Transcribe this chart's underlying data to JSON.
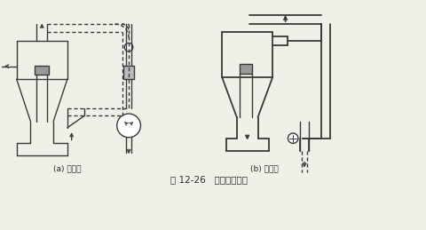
{
  "title": "图 12-26   气流输送系统",
  "label_a": "(a) 吸入式",
  "label_b": "(b) 压入式",
  "bg_color": "#f0efe8",
  "line_color": "#3a3a3a",
  "figsize": [
    4.81,
    2.59
  ],
  "dpi": 100
}
